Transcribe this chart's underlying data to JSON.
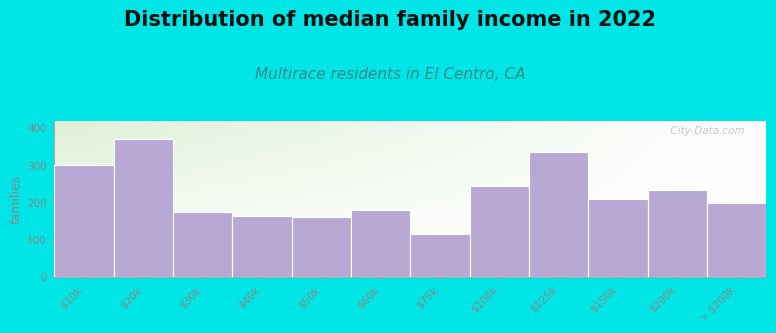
{
  "title": "Distribution of median family income in 2022",
  "subtitle": "Multirace residents in El Centro, CA",
  "ylabel": "families",
  "categories": [
    "$10k",
    "$20k",
    "$30k",
    "$40k",
    "$50k",
    "$60k",
    "$75k",
    "$100k",
    "$125k",
    "$150k",
    "$200k",
    "> $200k"
  ],
  "values": [
    300,
    370,
    175,
    165,
    160,
    180,
    115,
    245,
    335,
    210,
    235,
    200
  ],
  "bar_color": "#b8a9d4",
  "bar_edge_color": "#ffffff",
  "background_color": "#00e5e5",
  "plot_bg_top_left": "#dff0d8",
  "plot_bg_bottom_right": "#f8f8ff",
  "title_fontsize": 15,
  "subtitle_fontsize": 11,
  "subtitle_color": "#3a8a8a",
  "ylabel_fontsize": 9,
  "tick_fontsize": 7.5,
  "tick_color": "#888888",
  "ylim": [
    0,
    420
  ],
  "yticks": [
    0,
    100,
    200,
    300,
    400
  ],
  "watermark": "  City-Data.com"
}
